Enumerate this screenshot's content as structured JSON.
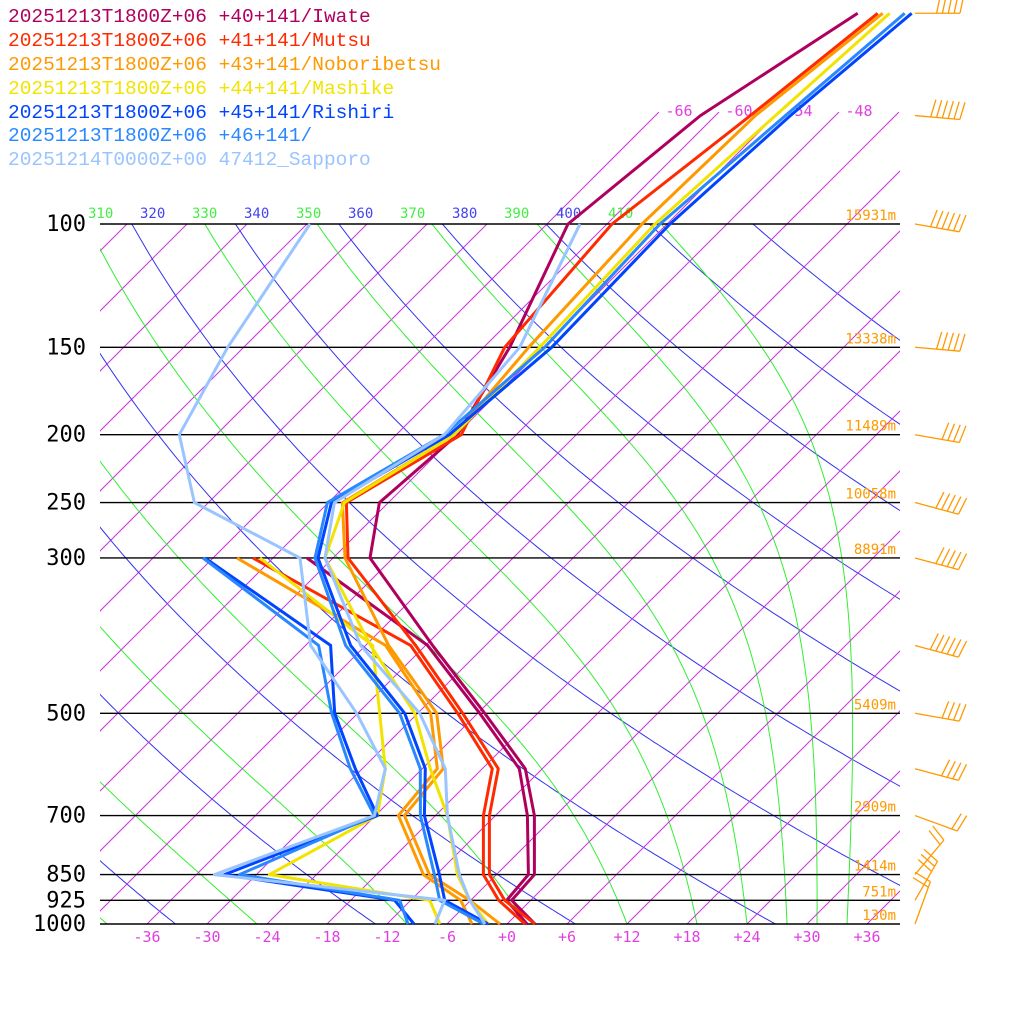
{
  "chart_data": {
    "type": "line",
    "diagram": "skew-T log-p",
    "legend_placement": "top-left",
    "series": [
      {
        "name": "20251213T1800Z+06 +40+141/Iwate",
        "color": "#b0005e",
        "temperature": [
          [
            1000,
            2.8
          ],
          [
            925,
            -1.9
          ],
          [
            850,
            -2.2
          ],
          [
            700,
            -8.1
          ],
          [
            600,
            -13.7
          ],
          [
            500,
            -23.3
          ],
          [
            400,
            -35.3
          ],
          [
            300,
            -50.3
          ],
          [
            250,
            -54.9
          ],
          [
            200,
            -53.9
          ],
          [
            150,
            -57.4
          ],
          [
            100,
            -63.9
          ],
          [
            70,
            -61.5
          ],
          [
            50,
            -56
          ]
        ],
        "dewpoint": [
          [
            1000,
            2.0
          ],
          [
            925,
            -2.4
          ],
          [
            850,
            -2.8
          ],
          [
            700,
            -8.8
          ],
          [
            600,
            -14.3
          ],
          [
            500,
            -23.8
          ],
          [
            400,
            -35.8
          ],
          [
            300,
            -56.6
          ]
        ]
      },
      {
        "name": "20251213T1800Z+06 +41+141/Mutsu",
        "color": "#ff2a00",
        "temperature": [
          [
            1000,
            2.8
          ],
          [
            925,
            -2.6
          ],
          [
            850,
            -6.7
          ],
          [
            700,
            -12.6
          ],
          [
            600,
            -16.4
          ],
          [
            500,
            -25.5
          ],
          [
            400,
            -37
          ],
          [
            300,
            -52.5
          ],
          [
            250,
            -58.2
          ],
          [
            200,
            -53.5
          ],
          [
            150,
            -57.9
          ],
          [
            100,
            -59.5
          ],
          [
            70,
            -56.5
          ],
          [
            50,
            -54
          ]
        ],
        "dewpoint": [
          [
            1000,
            1.8
          ],
          [
            925,
            -3.2
          ],
          [
            850,
            -7.3
          ],
          [
            700,
            -13.2
          ],
          [
            600,
            -17
          ],
          [
            500,
            -26
          ],
          [
            400,
            -37.5
          ],
          [
            300,
            -62
          ]
        ]
      },
      {
        "name": "20251213T1800Z+06 +43+141/Noboribetsu",
        "color": "#ff9900",
        "temperature": [
          [
            1000,
            -0.7
          ],
          [
            925,
            -6.1
          ],
          [
            850,
            -12.7
          ],
          [
            700,
            -21.1
          ],
          [
            600,
            -21.9
          ],
          [
            500,
            -28.1
          ],
          [
            400,
            -39.7
          ],
          [
            300,
            -52.8
          ],
          [
            250,
            -58.6
          ],
          [
            200,
            -54.2
          ],
          [
            150,
            -55.5
          ],
          [
            100,
            -56.5
          ],
          [
            70,
            -56
          ],
          [
            50,
            -53.5
          ]
        ],
        "dewpoint": [
          [
            1000,
            -3.5
          ],
          [
            925,
            -7.0
          ],
          [
            850,
            -13.3
          ],
          [
            700,
            -21.7
          ],
          [
            600,
            -22.5
          ],
          [
            500,
            -28.7
          ],
          [
            400,
            -40
          ],
          [
            300,
            -63.6
          ]
        ]
      },
      {
        "name": "20251213T1800Z+06 +44+141/Mashike",
        "color": "#f2e400",
        "temperature": [
          [
            1000,
            -1.9
          ],
          [
            925,
            -6.1
          ],
          [
            850,
            -9.9
          ],
          [
            700,
            -16.8
          ],
          [
            600,
            -23.2
          ],
          [
            500,
            -30.3
          ],
          [
            400,
            -41.5
          ],
          [
            300,
            -54.8
          ],
          [
            250,
            -58.4
          ],
          [
            200,
            -54.2
          ],
          [
            150,
            -54.4
          ],
          [
            100,
            -55.2
          ],
          [
            70,
            -54
          ],
          [
            50,
            -52.8
          ]
        ],
        "dewpoint": [
          [
            1000,
            -6.7
          ],
          [
            925,
            -10.1
          ],
          [
            850,
            -28.7
          ],
          [
            700,
            -23.8
          ],
          [
            600,
            -27.7
          ],
          [
            500,
            -33.8
          ],
          [
            400,
            -41.3
          ],
          [
            300,
            -61.3
          ]
        ]
      },
      {
        "name": "20251213T1800Z+06 +45+141/Rishiri",
        "color": "#0044ff",
        "temperature": [
          [
            1000,
            -1.9
          ],
          [
            925,
            -8.6
          ],
          [
            850,
            -11.7
          ],
          [
            700,
            -19.1
          ],
          [
            600,
            -23.7
          ],
          [
            500,
            -31.3
          ],
          [
            400,
            -43.5
          ],
          [
            300,
            -55.5
          ],
          [
            250,
            -59.7
          ],
          [
            200,
            -54.7
          ],
          [
            150,
            -53.2
          ],
          [
            100,
            -53.7
          ],
          [
            70,
            -52.5
          ],
          [
            50,
            -50.6
          ]
        ],
        "dewpoint": [
          [
            1000,
            -9.3
          ],
          [
            925,
            -13.6
          ],
          [
            850,
            -33.2
          ],
          [
            700,
            -23.8
          ],
          [
            600,
            -30.7
          ],
          [
            500,
            -38.3
          ],
          [
            400,
            -45.5
          ],
          [
            300,
            -66.8
          ]
        ]
      },
      {
        "name": "20251213T1800Z+06 +46+141/",
        "color": "#2a88ff",
        "temperature": [
          [
            1000,
            -2.3
          ],
          [
            925,
            -9.1
          ],
          [
            850,
            -12.2
          ],
          [
            700,
            -19.5
          ],
          [
            600,
            -24.2
          ],
          [
            500,
            -31.8
          ],
          [
            400,
            -44
          ],
          [
            300,
            -55.8
          ],
          [
            250,
            -60.1
          ],
          [
            200,
            -55.2
          ],
          [
            150,
            -53.9
          ],
          [
            100,
            -54.7
          ],
          [
            70,
            -53
          ],
          [
            50,
            -51.3
          ]
        ],
        "dewpoint": [
          [
            1000,
            -9.9
          ],
          [
            925,
            -13.1
          ],
          [
            850,
            -31.7
          ],
          [
            700,
            -24.1
          ],
          [
            600,
            -31.2
          ],
          [
            500,
            -38.6
          ],
          [
            400,
            -46.7
          ],
          [
            300,
            -67
          ]
        ]
      },
      {
        "name": "20251214T0000Z+00 47412_Sapporo",
        "color": "#99c4ff",
        "temperature": [
          [
            1000,
            -2.2
          ],
          [
            925,
            -6.1
          ],
          [
            850,
            -9.7
          ],
          [
            700,
            -16.8
          ],
          [
            600,
            -21.7
          ],
          [
            500,
            -29.8
          ],
          [
            400,
            -42.5
          ],
          [
            300,
            -54.8
          ],
          [
            250,
            -59.4
          ],
          [
            200,
            -55.2
          ],
          [
            150,
            -56.4
          ],
          [
            100,
            -62.7
          ]
        ],
        "dewpoint": [
          [
            1000,
            -7.2
          ],
          [
            925,
            -8.6
          ],
          [
            850,
            -34.2
          ],
          [
            700,
            -24.1
          ],
          [
            600,
            -27.7
          ],
          [
            500,
            -36.1
          ],
          [
            400,
            -47.5
          ],
          [
            300,
            -57.3
          ],
          [
            250,
            -73.4
          ],
          [
            200,
            -81.7
          ],
          [
            150,
            -85.6
          ],
          [
            100,
            -89.7
          ]
        ]
      }
    ],
    "pressure_levels": [
      {
        "p": 100,
        "label": "100",
        "height": "15931m"
      },
      {
        "p": 150,
        "label": "150",
        "height": "13338m"
      },
      {
        "p": 200,
        "label": "200",
        "height": "11489m"
      },
      {
        "p": 250,
        "label": "250",
        "height": "10058m"
      },
      {
        "p": 300,
        "label": "300",
        "height": "8891m"
      },
      {
        "p": 500,
        "label": "500",
        "height": "5409m"
      },
      {
        "p": 700,
        "label": "700",
        "height": "2909m"
      },
      {
        "p": 850,
        "label": "850",
        "height": "1414m"
      },
      {
        "p": 925,
        "label": "925",
        "height": "751m"
      },
      {
        "p": 1000,
        "label": "1000",
        "height": "130m"
      }
    ],
    "x_tick_labels": [
      "-36",
      "-30",
      "-24",
      "-18",
      "-12",
      "-6",
      "+0",
      "+6",
      "+12",
      "+18",
      "+24",
      "+30",
      "+36"
    ],
    "x_ticks": [
      -36,
      -30,
      -24,
      -18,
      -12,
      -6,
      0,
      6,
      12,
      18,
      24,
      30,
      36
    ],
    "upper_isotherm_labels": [
      {
        "t": -66,
        "label": "-66"
      },
      {
        "t": -60,
        "label": "-60"
      },
      {
        "t": -54,
        "label": "-54"
      },
      {
        "t": -48,
        "label": "-48"
      }
    ],
    "theta_labels": [
      {
        "label": "310",
        "kind": "moist"
      },
      {
        "label": "320",
        "kind": "dry"
      },
      {
        "label": "330",
        "kind": "moist"
      },
      {
        "label": "340",
        "kind": "dry"
      },
      {
        "label": "350",
        "kind": "moist"
      },
      {
        "label": "360",
        "kind": "dry"
      },
      {
        "label": "370",
        "kind": "moist"
      },
      {
        "label": "380",
        "kind": "dry"
      },
      {
        "label": "390",
        "kind": "moist"
      },
      {
        "label": "400",
        "kind": "dry"
      },
      {
        "label": "410",
        "kind": "moist"
      }
    ],
    "pressure_range_hpa": [
      1000,
      50
    ],
    "isotherm_step_c": 6,
    "dry_adiabats_k": [
      200,
      220,
      240,
      260,
      280,
      300,
      320,
      340,
      360,
      380,
      400,
      420,
      440
    ],
    "moist_adiabat_start_t_1000": [
      -40,
      -25,
      -10,
      2,
      12,
      19,
      24,
      28,
      31,
      34
    ],
    "wind_barbs_kt": [
      [
        50,
        270,
        45
      ],
      [
        70,
        265,
        60
      ],
      [
        100,
        260,
        55
      ],
      [
        150,
        265,
        45
      ],
      [
        200,
        260,
        40
      ],
      [
        250,
        255,
        45
      ],
      [
        300,
        255,
        50
      ],
      [
        400,
        255,
        55
      ],
      [
        500,
        260,
        35
      ],
      [
        600,
        255,
        40
      ],
      [
        700,
        250,
        20
      ],
      [
        850,
        320,
        20
      ],
      [
        925,
        330,
        25
      ],
      [
        1000,
        340,
        20
      ]
    ],
    "colors": {
      "isotherm": "#cc33dd",
      "dry_adiabat": "#3333ee",
      "moist_adiabat": "#33ee33",
      "isobar": "#000000",
      "height_label": "#ff9900",
      "wind_barb": "#ff9900",
      "dry_label": "#4444ee",
      "moist_label": "#44ee44"
    }
  }
}
